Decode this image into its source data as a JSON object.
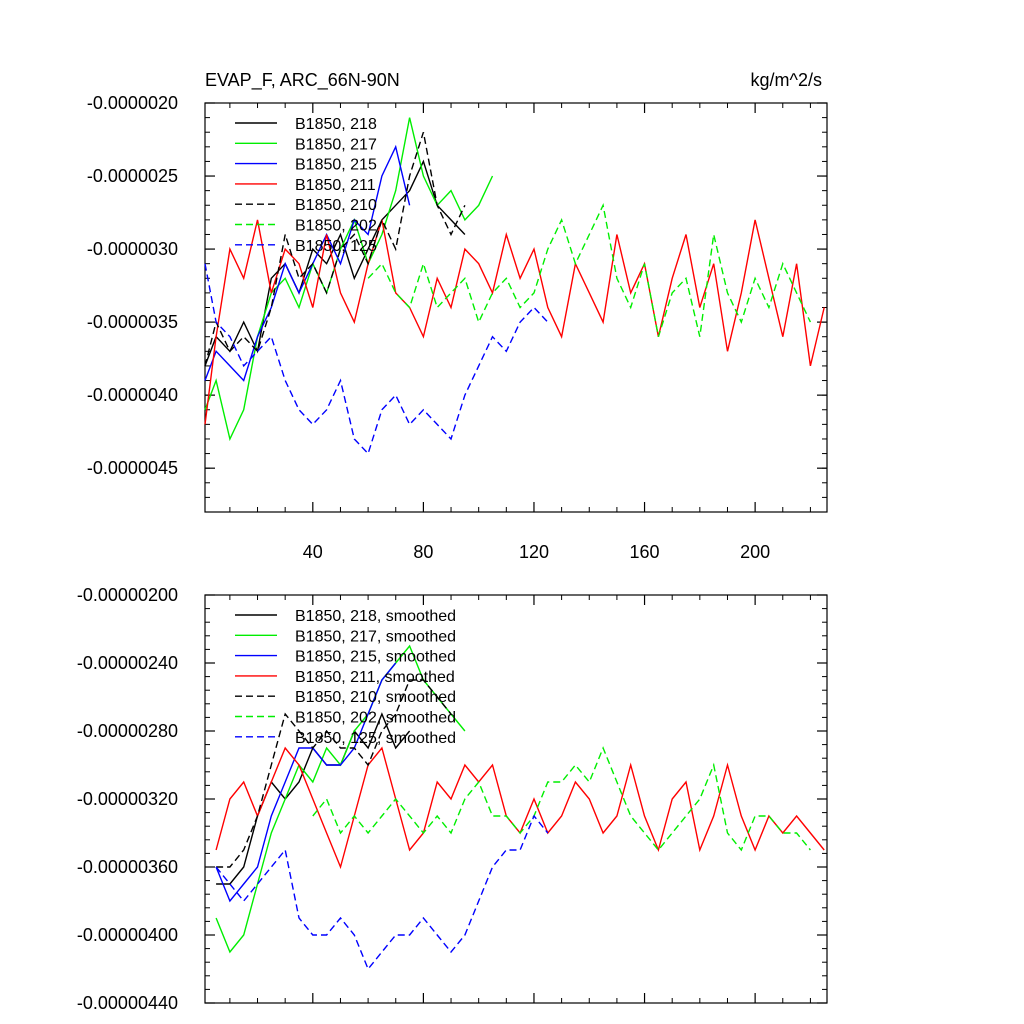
{
  "chart_data": [
    {
      "type": "line",
      "title": "EVAP_F, ARC_66N-90N",
      "units": "kg/m^2/s",
      "xlabel": "",
      "ylabel": "",
      "xlim": [
        1,
        226
      ],
      "ylim": [
        -4.8e-06,
        -2e-06
      ],
      "xticks": [
        40,
        80,
        120,
        160,
        200
      ],
      "xtick_labels": [
        "40",
        "80",
        "120",
        "160",
        "200"
      ],
      "yticks": [
        -2e-06,
        -2.5e-06,
        -3e-06,
        -3.5e-06,
        -4e-06,
        -4.5e-06
      ],
      "ytick_labels": [
        "-0.0000020",
        "-0.0000025",
        "-0.0000030",
        "-0.0000035",
        "-0.0000040",
        "-0.0000045"
      ],
      "legend_position": "top-left",
      "series": [
        {
          "name": "B1850, 218",
          "color": "#000000",
          "dash": "solid",
          "x": [
            1,
            5,
            10,
            15,
            20,
            25,
            30,
            35,
            40,
            45,
            50,
            55,
            60,
            65,
            70,
            75,
            80,
            85,
            90,
            95
          ],
          "values": [
            -3.8e-06,
            -3.6e-06,
            -3.7e-06,
            -3.5e-06,
            -3.7e-06,
            -3.2e-06,
            -3.1e-06,
            -3.3e-06,
            -3e-06,
            -3.1e-06,
            -2.9e-06,
            -3.2e-06,
            -3e-06,
            -2.8e-06,
            -2.7e-06,
            -2.6e-06,
            -2.4e-06,
            -2.7e-06,
            -2.8e-06,
            -2.9e-06
          ]
        },
        {
          "name": "B1850, 217",
          "color": "#00ee00",
          "dash": "solid",
          "x": [
            1,
            5,
            10,
            15,
            20,
            25,
            30,
            35,
            40,
            45,
            50,
            55,
            60,
            65,
            70,
            75,
            80,
            85,
            90,
            95,
            100,
            105
          ],
          "values": [
            -4.1e-06,
            -3.9e-06,
            -4.3e-06,
            -4.1e-06,
            -3.6e-06,
            -3.3e-06,
            -3.2e-06,
            -3.4e-06,
            -3.1e-06,
            -3.3e-06,
            -3e-06,
            -2.8e-06,
            -3.1e-06,
            -2.9e-06,
            -2.6e-06,
            -2.1e-06,
            -2.5e-06,
            -2.7e-06,
            -2.6e-06,
            -2.8e-06,
            -2.7e-06,
            -2.5e-06
          ]
        },
        {
          "name": "B1850, 215",
          "color": "#0000ff",
          "dash": "solid",
          "x": [
            1,
            5,
            10,
            15,
            20,
            25,
            30,
            35,
            40,
            45,
            50,
            55,
            60,
            65,
            70,
            75
          ],
          "values": [
            -3.9e-06,
            -3.7e-06,
            -3.8e-06,
            -3.9e-06,
            -3.6e-06,
            -3.4e-06,
            -3.1e-06,
            -3.3e-06,
            -3.1e-06,
            -2.9e-06,
            -3.1e-06,
            -2.8e-06,
            -2.9e-06,
            -2.5e-06,
            -2.3e-06,
            -2.7e-06
          ]
        },
        {
          "name": "B1850, 211",
          "color": "#ff0000",
          "dash": "solid",
          "x": [
            1,
            5,
            10,
            15,
            20,
            25,
            30,
            35,
            40,
            45,
            50,
            55,
            60,
            65,
            70,
            75,
            80,
            85,
            90,
            95,
            100,
            105,
            110,
            115,
            120,
            125,
            130,
            135,
            140,
            145,
            150,
            155,
            160,
            165,
            170,
            175,
            180,
            185,
            190,
            195,
            200,
            205,
            210,
            215,
            220,
            225
          ],
          "values": [
            -4.2e-06,
            -3.6e-06,
            -3e-06,
            -3.2e-06,
            -2.8e-06,
            -3.3e-06,
            -3e-06,
            -3.1e-06,
            -3.4e-06,
            -2.9e-06,
            -3.3e-06,
            -3.5e-06,
            -3.1e-06,
            -2.8e-06,
            -3.3e-06,
            -3.4e-06,
            -3.6e-06,
            -3.2e-06,
            -3.4e-06,
            -3e-06,
            -3.1e-06,
            -3.3e-06,
            -2.9e-06,
            -3.2e-06,
            -3e-06,
            -3.4e-06,
            -3.6e-06,
            -3.1e-06,
            -3.3e-06,
            -3.5e-06,
            -2.9e-06,
            -3.3e-06,
            -3.1e-06,
            -3.6e-06,
            -3.2e-06,
            -2.9e-06,
            -3.4e-06,
            -3.1e-06,
            -3.7e-06,
            -3.3e-06,
            -2.8e-06,
            -3.2e-06,
            -3.6e-06,
            -3.1e-06,
            -3.8e-06,
            -3.4e-06
          ]
        },
        {
          "name": "B1850, 210",
          "color": "#000000",
          "dash": "dashed",
          "x": [
            1,
            5,
            10,
            15,
            20,
            25,
            30,
            35,
            40,
            45,
            50,
            55,
            60,
            65,
            70,
            75,
            80,
            85,
            90,
            95
          ],
          "values": [
            -3.8e-06,
            -3.5e-06,
            -3.7e-06,
            -3.6e-06,
            -3.7e-06,
            -3.4e-06,
            -2.9e-06,
            -3.2e-06,
            -3.1e-06,
            -3.3e-06,
            -3e-06,
            -2.9e-06,
            -3.1e-06,
            -2.8e-06,
            -3e-06,
            -2.5e-06,
            -2.2e-06,
            -2.7e-06,
            -2.9e-06,
            -2.7e-06
          ]
        },
        {
          "name": "B1850, 202",
          "color": "#00ee00",
          "dash": "dashed",
          "x": [
            60,
            65,
            70,
            75,
            80,
            85,
            90,
            95,
            100,
            105,
            110,
            115,
            120,
            125,
            130,
            135,
            140,
            145,
            150,
            155,
            160,
            165,
            170,
            175,
            180,
            185,
            190,
            195,
            200,
            205,
            210,
            215,
            220
          ],
          "values": [
            -3.2e-06,
            -3.1e-06,
            -3.3e-06,
            -3.4e-06,
            -3.1e-06,
            -3.4e-06,
            -3.3e-06,
            -3.2e-06,
            -3.5e-06,
            -3.3e-06,
            -3.2e-06,
            -3.4e-06,
            -3.3e-06,
            -3e-06,
            -2.8e-06,
            -3.1e-06,
            -2.9e-06,
            -2.7e-06,
            -3.2e-06,
            -3.4e-06,
            -3.1e-06,
            -3.6e-06,
            -3.3e-06,
            -3.2e-06,
            -3.6e-06,
            -2.9e-06,
            -3.3e-06,
            -3.5e-06,
            -3.2e-06,
            -3.4e-06,
            -3.1e-06,
            -3.3e-06,
            -3.5e-06
          ]
        },
        {
          "name": "B1850, 125",
          "color": "#0000ff",
          "dash": "dashed",
          "x": [
            1,
            5,
            10,
            15,
            20,
            25,
            30,
            35,
            40,
            45,
            50,
            55,
            60,
            65,
            70,
            75,
            80,
            85,
            90,
            95,
            100,
            105,
            110,
            115,
            120,
            125
          ],
          "values": [
            -3.1e-06,
            -3.5e-06,
            -3.6e-06,
            -3.8e-06,
            -3.7e-06,
            -3.6e-06,
            -3.9e-06,
            -4.1e-06,
            -4.2e-06,
            -4.1e-06,
            -3.9e-06,
            -4.3e-06,
            -4.4e-06,
            -4.1e-06,
            -4e-06,
            -4.2e-06,
            -4.1e-06,
            -4.2e-06,
            -4.3e-06,
            -4e-06,
            -3.8e-06,
            -3.6e-06,
            -3.7e-06,
            -3.5e-06,
            -3.4e-06,
            -3.5e-06
          ]
        }
      ]
    },
    {
      "type": "line",
      "title": "",
      "xlabel": "",
      "ylabel": "",
      "xlim": [
        1,
        226
      ],
      "ylim": [
        -4.4e-06,
        -2e-06
      ],
      "xticks": [
        40,
        80,
        120,
        160,
        200
      ],
      "xtick_labels": [],
      "yticks": [
        -2e-06,
        -2.4e-06,
        -2.8e-06,
        -3.2e-06,
        -3.6e-06,
        -4e-06,
        -4.4e-06
      ],
      "ytick_labels": [
        "-0.00000200",
        "-0.00000240",
        "-0.00000280",
        "-0.00000320",
        "-0.00000360",
        "-0.00000400",
        "-0.00000440"
      ],
      "legend_position": "top-left",
      "series": [
        {
          "name": "B1850, 218, smoothed",
          "color": "#000000",
          "dash": "solid",
          "x": [
            5,
            10,
            15,
            20,
            25,
            30,
            35,
            40,
            45,
            50,
            55,
            60,
            65,
            70,
            75
          ],
          "values": [
            -3.7e-06,
            -3.7e-06,
            -3.6e-06,
            -3.3e-06,
            -3.1e-06,
            -3.2e-06,
            -3.1e-06,
            -2.9e-06,
            -3e-06,
            -3e-06,
            -2.8e-06,
            -2.9e-06,
            -2.7e-06,
            -2.9e-06,
            -2.8e-06
          ]
        },
        {
          "name": "B1850, 217, smoothed",
          "color": "#00ee00",
          "dash": "solid",
          "x": [
            5,
            10,
            15,
            20,
            25,
            30,
            35,
            40,
            45,
            50,
            55,
            60,
            65,
            70,
            75,
            80,
            85,
            90,
            95
          ],
          "values": [
            -3.9e-06,
            -4.1e-06,
            -4e-06,
            -3.7e-06,
            -3.4e-06,
            -3.2e-06,
            -3e-06,
            -3.1e-06,
            -2.9e-06,
            -3e-06,
            -2.8e-06,
            -2.7e-06,
            -2.5e-06,
            -2.4e-06,
            -2.3e-06,
            -2.5e-06,
            -2.6e-06,
            -2.7e-06,
            -2.8e-06
          ]
        },
        {
          "name": "B1850, 215, smoothed",
          "color": "#0000ff",
          "dash": "solid",
          "x": [
            5,
            10,
            15,
            20,
            25,
            30,
            35,
            40,
            45,
            50,
            55,
            60,
            65,
            70
          ],
          "values": [
            -3.6e-06,
            -3.8e-06,
            -3.7e-06,
            -3.6e-06,
            -3.3e-06,
            -3.1e-06,
            -2.9e-06,
            -2.9e-06,
            -3e-06,
            -3e-06,
            -2.9e-06,
            -2.7e-06,
            -2.5e-06,
            -2.4e-06
          ]
        },
        {
          "name": "B1850, 211, smoothed",
          "color": "#ff0000",
          "dash": "solid",
          "x": [
            5,
            10,
            15,
            20,
            25,
            30,
            35,
            40,
            45,
            50,
            55,
            60,
            65,
            70,
            75,
            80,
            85,
            90,
            95,
            100,
            105,
            110,
            115,
            120,
            125,
            130,
            135,
            140,
            145,
            150,
            155,
            160,
            165,
            170,
            175,
            180,
            185,
            190,
            195,
            200,
            205,
            210,
            215,
            220,
            225
          ],
          "values": [
            -3.5e-06,
            -3.2e-06,
            -3.1e-06,
            -3.3e-06,
            -3.1e-06,
            -2.9e-06,
            -3e-06,
            -3.2e-06,
            -3.4e-06,
            -3.6e-06,
            -3.3e-06,
            -3e-06,
            -2.9e-06,
            -3.2e-06,
            -3.5e-06,
            -3.4e-06,
            -3.1e-06,
            -3.2e-06,
            -3e-06,
            -3.1e-06,
            -3e-06,
            -3.3e-06,
            -3.4e-06,
            -3.2e-06,
            -3.4e-06,
            -3.3e-06,
            -3.1e-06,
            -3.2e-06,
            -3.4e-06,
            -3.3e-06,
            -3e-06,
            -3.3e-06,
            -3.5e-06,
            -3.2e-06,
            -3.1e-06,
            -3.5e-06,
            -3.3e-06,
            -3e-06,
            -3.3e-06,
            -3.5e-06,
            -3.3e-06,
            -3.4e-06,
            -3.3e-06,
            -3.4e-06,
            -3.5e-06
          ]
        },
        {
          "name": "B1850, 210, smoothed",
          "color": "#000000",
          "dash": "dashed",
          "x": [
            5,
            10,
            15,
            20,
            25,
            30,
            35,
            40,
            45,
            50,
            55,
            60,
            65,
            70,
            75,
            80,
            85,
            90
          ],
          "values": [
            -3.6e-06,
            -3.6e-06,
            -3.5e-06,
            -3.3e-06,
            -3e-06,
            -2.7e-06,
            -2.8e-06,
            -2.9e-06,
            -2.8e-06,
            -2.9e-06,
            -2.9e-06,
            -3e-06,
            -2.8e-06,
            -2.7e-06,
            -2.5e-06,
            -2.5e-06,
            -2.6e-06,
            -2.7e-06
          ]
        },
        {
          "name": "B1850, 202, smoothed",
          "color": "#00ee00",
          "dash": "dashed",
          "x": [
            40,
            45,
            50,
            55,
            60,
            65,
            70,
            75,
            80,
            85,
            90,
            95,
            100,
            105,
            110,
            115,
            120,
            125,
            130,
            135,
            140,
            145,
            150,
            155,
            160,
            165,
            170,
            175,
            180,
            185,
            190,
            195,
            200,
            205,
            210,
            215,
            220
          ],
          "values": [
            -3.3e-06,
            -3.2e-06,
            -3.4e-06,
            -3.3e-06,
            -3.4e-06,
            -3.3e-06,
            -3.2e-06,
            -3.3e-06,
            -3.4e-06,
            -3.3e-06,
            -3.4e-06,
            -3.2e-06,
            -3.1e-06,
            -3.3e-06,
            -3.3e-06,
            -3.4e-06,
            -3.3e-06,
            -3.1e-06,
            -3.1e-06,
            -3e-06,
            -3.1e-06,
            -2.9e-06,
            -3.1e-06,
            -3.3e-06,
            -3.4e-06,
            -3.5e-06,
            -3.4e-06,
            -3.3e-06,
            -3.2e-06,
            -3e-06,
            -3.4e-06,
            -3.5e-06,
            -3.3e-06,
            -3.3e-06,
            -3.4e-06,
            -3.4e-06,
            -3.5e-06
          ]
        },
        {
          "name": "B1850, 125, smoothed",
          "color": "#0000ff",
          "dash": "dashed",
          "x": [
            5,
            10,
            15,
            20,
            25,
            30,
            35,
            40,
            45,
            50,
            55,
            60,
            65,
            70,
            75,
            80,
            85,
            90,
            95,
            100,
            105,
            110,
            115,
            120,
            125
          ],
          "values": [
            -3.6e-06,
            -3.7e-06,
            -3.8e-06,
            -3.7e-06,
            -3.6e-06,
            -3.5e-06,
            -3.9e-06,
            -4e-06,
            -4e-06,
            -3.9e-06,
            -4e-06,
            -4.2e-06,
            -4.1e-06,
            -4e-06,
            -4e-06,
            -3.9e-06,
            -4e-06,
            -4.1e-06,
            -4e-06,
            -3.8e-06,
            -3.6e-06,
            -3.5e-06,
            -3.5e-06,
            -3.3e-06,
            -3.4e-06
          ]
        }
      ]
    }
  ]
}
